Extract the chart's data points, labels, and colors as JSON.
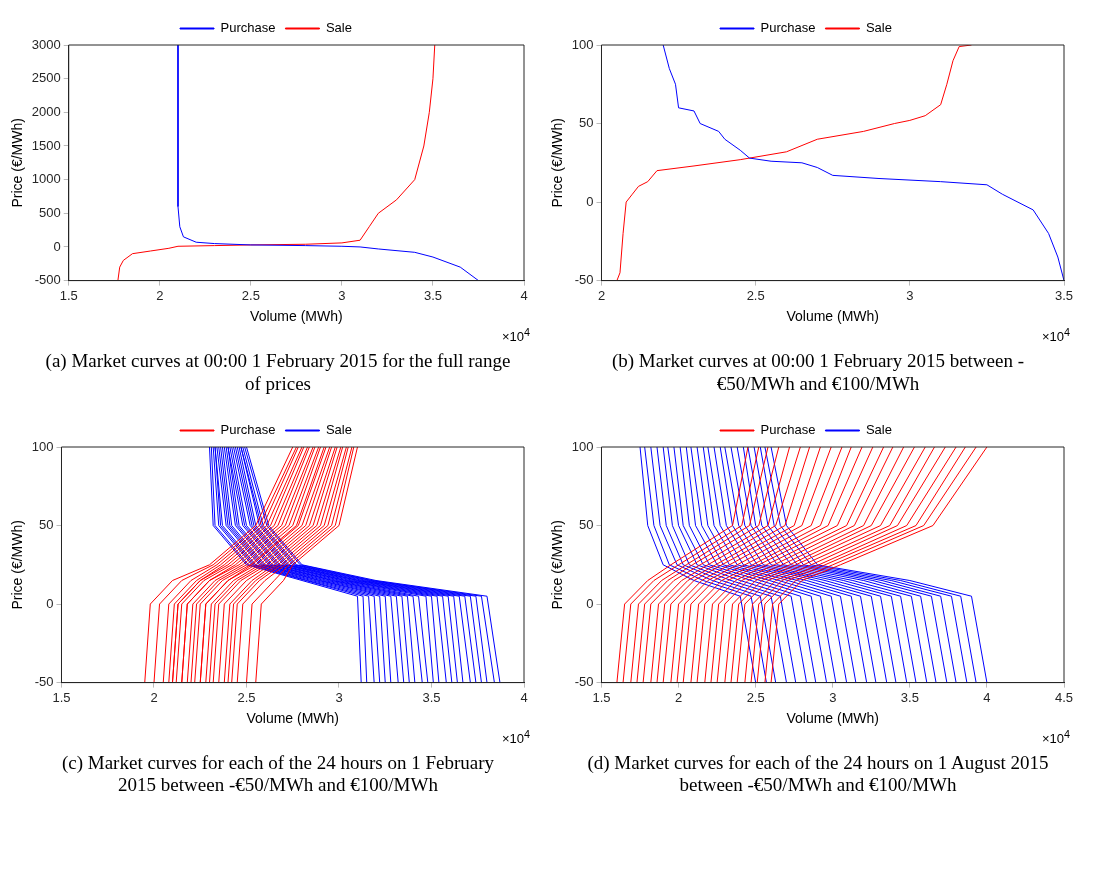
{
  "chart_data": [
    {
      "type": "line",
      "title": "(a) Market curves at 00:00 1 February 2015 for the full range of prices",
      "xlabel": "Volume (MWh)",
      "ylabel": "Price (€/MWh)",
      "annotations": [
        "×10$^{4}$"
      ],
      "xlim": [
        1.5,
        4
      ],
      "xticks": [
        1.5,
        2,
        2.5,
        3,
        3.5,
        4
      ],
      "ylim": [
        -500,
        3000
      ],
      "yticks": [
        -500,
        0,
        500,
        1000,
        1500,
        2000,
        2500,
        3000
      ],
      "legend": "top",
      "series": [
        {
          "name": "Purchase",
          "color": "#0000ff",
          "x": [
            2.1,
            2.1,
            2.11,
            2.13,
            2.2,
            2.3,
            2.5,
            2.8,
            3.0,
            3.1,
            3.2,
            3.4,
            3.5,
            3.65,
            3.75
          ],
          "values": [
            3000,
            600,
            300,
            150,
            70,
            50,
            30,
            20,
            10,
            0,
            -30,
            -80,
            -150,
            -300,
            -500
          ]
        },
        {
          "name": "Sale",
          "color": "#ff0000",
          "x": [
            1.77,
            1.78,
            1.8,
            1.85,
            1.95,
            2.05,
            2.1,
            2.3,
            2.5,
            2.8,
            3.0,
            3.1,
            3.15,
            3.2,
            3.3,
            3.4,
            3.45,
            3.48,
            3.5,
            3.51
          ],
          "values": [
            -500,
            -300,
            -200,
            -100,
            -60,
            -20,
            10,
            20,
            30,
            40,
            60,
            100,
            300,
            500,
            700,
            1000,
            1500,
            2000,
            2500,
            3000
          ]
        }
      ]
    },
    {
      "type": "line",
      "title": "(b) Market curves at 00:00 1 February 2015 between -€50/MWh and €100/MWh",
      "xlabel": "Volume (MWh)",
      "ylabel": "Price (€/MWh)",
      "annotations": [
        "×10$^{4}$"
      ],
      "xlim": [
        2,
        3.5
      ],
      "xticks": [
        2,
        2.5,
        3,
        3.5
      ],
      "ylim": [
        -50,
        100
      ],
      "yticks": [
        -50,
        0,
        50,
        100
      ],
      "legend": "top",
      "series": [
        {
          "name": "Purchase",
          "color": "#0000ff",
          "x": [
            2.2,
            2.22,
            2.24,
            2.25,
            2.3,
            2.32,
            2.38,
            2.4,
            2.45,
            2.48,
            2.55,
            2.65,
            2.7,
            2.75,
            2.9,
            3.1,
            3.25,
            3.3,
            3.4,
            3.45,
            3.48,
            3.5
          ],
          "values": [
            100,
            85,
            75,
            60,
            58,
            50,
            45,
            40,
            33,
            28,
            26,
            25,
            22,
            17,
            15,
            13,
            11,
            5,
            -5,
            -20,
            -35,
            -50
          ]
        },
        {
          "name": "Sale",
          "color": "#ff0000",
          "x": [
            2.05,
            2.06,
            2.07,
            2.08,
            2.1,
            2.12,
            2.15,
            2.18,
            2.3,
            2.45,
            2.6,
            2.7,
            2.85,
            2.95,
            3.0,
            3.05,
            3.1,
            3.12,
            3.14,
            3.16,
            3.2
          ],
          "values": [
            -50,
            -45,
            -20,
            0,
            5,
            10,
            13,
            20,
            23,
            27,
            32,
            40,
            45,
            50,
            52,
            55,
            62,
            75,
            90,
            99,
            100
          ]
        }
      ]
    },
    {
      "type": "line",
      "title": "(c) Market curves for each of the 24 hours on 1 February 2015 between -€50/MWh and €100/MWh",
      "xlabel": "Volume (MWh)",
      "ylabel": "Price (€/MWh)",
      "annotations": [
        "×10$^{4}$"
      ],
      "xlim": [
        1.5,
        4
      ],
      "xticks": [
        1.5,
        2,
        2.5,
        3,
        3.5,
        4
      ],
      "ylim": [
        -50,
        100
      ],
      "yticks": [
        -50,
        0,
        50,
        100
      ],
      "legend": "top",
      "series": [
        {
          "name": "Purchase",
          "color": "#ff0000",
          "x": [
            1.95,
            1.98,
            2.1,
            2.3,
            2.55,
            2.75
          ],
          "values": [
            -50,
            0,
            15,
            25,
            50,
            100
          ]
        },
        {
          "color": "#ff0000",
          "x": [
            2.0,
            2.03,
            2.15,
            2.32,
            2.57,
            2.77
          ],
          "values": [
            -50,
            0,
            15,
            25,
            50,
            100
          ]
        },
        {
          "color": "#ff0000",
          "x": [
            2.05,
            2.08,
            2.2,
            2.34,
            2.59,
            2.78
          ],
          "values": [
            -50,
            0,
            15,
            25,
            50,
            100
          ]
        },
        {
          "color": "#ff0000",
          "x": [
            2.08,
            2.11,
            2.23,
            2.36,
            2.61,
            2.8
          ],
          "values": [
            -50,
            0,
            15,
            25,
            50,
            100
          ]
        },
        {
          "color": "#ff0000",
          "x": [
            2.1,
            2.13,
            2.25,
            2.38,
            2.63,
            2.81
          ],
          "values": [
            -50,
            0,
            15,
            25,
            50,
            100
          ]
        },
        {
          "color": "#ff0000",
          "x": [
            2.1,
            2.13,
            2.25,
            2.4,
            2.65,
            2.83
          ],
          "values": [
            -50,
            0,
            15,
            25,
            50,
            100
          ]
        },
        {
          "color": "#ff0000",
          "x": [
            2.12,
            2.15,
            2.27,
            2.42,
            2.67,
            2.84
          ],
          "values": [
            -50,
            0,
            15,
            25,
            50,
            100
          ]
        },
        {
          "color": "#ff0000",
          "x": [
            2.15,
            2.18,
            2.3,
            2.44,
            2.69,
            2.86
          ],
          "values": [
            -50,
            0,
            15,
            25,
            50,
            100
          ]
        },
        {
          "color": "#ff0000",
          "x": [
            2.15,
            2.18,
            2.3,
            2.46,
            2.71,
            2.87
          ],
          "values": [
            -50,
            0,
            15,
            25,
            50,
            100
          ]
        },
        {
          "color": "#ff0000",
          "x": [
            2.18,
            2.21,
            2.33,
            2.48,
            2.73,
            2.89
          ],
          "values": [
            -50,
            0,
            15,
            25,
            50,
            100
          ]
        },
        {
          "color": "#ff0000",
          "x": [
            2.2,
            2.23,
            2.35,
            2.5,
            2.75,
            2.9
          ],
          "values": [
            -50,
            0,
            15,
            25,
            50,
            100
          ]
        },
        {
          "color": "#ff0000",
          "x": [
            2.22,
            2.25,
            2.37,
            2.52,
            2.77,
            2.92
          ],
          "values": [
            -50,
            0,
            15,
            25,
            50,
            100
          ]
        },
        {
          "color": "#ff0000",
          "x": [
            2.25,
            2.28,
            2.4,
            2.53,
            2.78,
            2.93
          ],
          "values": [
            -50,
            0,
            15,
            25,
            50,
            100
          ]
        },
        {
          "color": "#ff0000",
          "x": [
            2.25,
            2.28,
            2.4,
            2.55,
            2.8,
            2.95
          ],
          "values": [
            -50,
            0,
            15,
            25,
            50,
            100
          ]
        },
        {
          "color": "#ff0000",
          "x": [
            2.28,
            2.31,
            2.43,
            2.57,
            2.82,
            2.96
          ],
          "values": [
            -50,
            0,
            15,
            25,
            50,
            100
          ]
        },
        {
          "color": "#ff0000",
          "x": [
            2.3,
            2.33,
            2.45,
            2.59,
            2.84,
            2.98
          ],
          "values": [
            -50,
            0,
            15,
            25,
            50,
            100
          ]
        },
        {
          "color": "#ff0000",
          "x": [
            2.32,
            2.35,
            2.47,
            2.61,
            2.86,
            2.99
          ],
          "values": [
            -50,
            0,
            15,
            25,
            50,
            100
          ]
        },
        {
          "color": "#ff0000",
          "x": [
            2.35,
            2.38,
            2.5,
            2.63,
            2.88,
            3.01
          ],
          "values": [
            -50,
            0,
            15,
            25,
            50,
            100
          ]
        },
        {
          "color": "#ff0000",
          "x": [
            2.38,
            2.41,
            2.53,
            2.65,
            2.9,
            3.02
          ],
          "values": [
            -50,
            0,
            15,
            25,
            50,
            100
          ]
        },
        {
          "color": "#ff0000",
          "x": [
            2.4,
            2.43,
            2.55,
            2.67,
            2.92,
            3.04
          ],
          "values": [
            -50,
            0,
            15,
            25,
            50,
            100
          ]
        },
        {
          "color": "#ff0000",
          "x": [
            2.42,
            2.45,
            2.57,
            2.69,
            2.94,
            3.05
          ],
          "values": [
            -50,
            0,
            15,
            25,
            50,
            100
          ]
        },
        {
          "color": "#ff0000",
          "x": [
            2.45,
            2.48,
            2.6,
            2.71,
            2.96,
            3.07
          ],
          "values": [
            -50,
            0,
            15,
            25,
            50,
            100
          ]
        },
        {
          "color": "#ff0000",
          "x": [
            2.5,
            2.53,
            2.65,
            2.73,
            2.98,
            3.08
          ],
          "values": [
            -50,
            0,
            15,
            25,
            50,
            100
          ]
        },
        {
          "color": "#ff0000",
          "x": [
            2.55,
            2.58,
            2.7,
            2.75,
            3.0,
            3.1
          ],
          "values": [
            -50,
            0,
            15,
            25,
            50,
            100
          ]
        },
        {
          "name": "Sale",
          "color": "#0000ff",
          "x": [
            2.3,
            2.32,
            2.5,
            2.8,
            3.1,
            3.12
          ],
          "values": [
            100,
            50,
            25,
            15,
            5,
            -50
          ]
        },
        {
          "color": "#0000ff",
          "x": [
            2.31,
            2.33,
            2.51,
            2.82,
            3.13,
            3.15
          ],
          "values": [
            100,
            50,
            25,
            15,
            5,
            -50
          ]
        },
        {
          "color": "#0000ff",
          "x": [
            2.32,
            2.35,
            2.53,
            2.83,
            3.16,
            3.19
          ],
          "values": [
            100,
            50,
            25,
            15,
            5,
            -50
          ]
        },
        {
          "color": "#0000ff",
          "x": [
            2.33,
            2.36,
            2.54,
            2.85,
            3.19,
            3.22
          ],
          "values": [
            100,
            50,
            25,
            15,
            5,
            -50
          ]
        },
        {
          "color": "#0000ff",
          "x": [
            2.33,
            2.37,
            2.55,
            2.87,
            3.22,
            3.25
          ],
          "values": [
            100,
            50,
            25,
            15,
            5,
            -50
          ]
        },
        {
          "color": "#0000ff",
          "x": [
            2.34,
            2.39,
            2.57,
            2.89,
            3.25,
            3.28
          ],
          "values": [
            100,
            50,
            25,
            15,
            5,
            -50
          ]
        },
        {
          "color": "#0000ff",
          "x": [
            2.35,
            2.4,
            2.58,
            2.9,
            3.28,
            3.32
          ],
          "values": [
            100,
            50,
            25,
            15,
            5,
            -50
          ]
        },
        {
          "color": "#0000ff",
          "x": [
            2.36,
            2.41,
            2.59,
            2.92,
            3.31,
            3.35
          ],
          "values": [
            100,
            50,
            25,
            15,
            5,
            -50
          ]
        },
        {
          "color": "#0000ff",
          "x": [
            2.37,
            2.42,
            2.6,
            2.94,
            3.34,
            3.38
          ],
          "values": [
            100,
            50,
            25,
            15,
            5,
            -50
          ]
        },
        {
          "color": "#0000ff",
          "x": [
            2.38,
            2.44,
            2.62,
            2.96,
            3.37,
            3.41
          ],
          "values": [
            100,
            50,
            25,
            15,
            5,
            -50
          ]
        },
        {
          "color": "#0000ff",
          "x": [
            2.39,
            2.45,
            2.63,
            2.97,
            3.4,
            3.45
          ],
          "values": [
            100,
            50,
            25,
            15,
            5,
            -50
          ]
        },
        {
          "color": "#0000ff",
          "x": [
            2.4,
            2.46,
            2.64,
            2.99,
            3.43,
            3.48
          ],
          "values": [
            100,
            50,
            25,
            15,
            5,
            -50
          ]
        },
        {
          "color": "#0000ff",
          "x": [
            2.4,
            2.48,
            2.66,
            3.01,
            3.47,
            3.51
          ],
          "values": [
            100,
            50,
            25,
            15,
            5,
            -50
          ]
        },
        {
          "color": "#0000ff",
          "x": [
            2.41,
            2.49,
            2.67,
            3.03,
            3.5,
            3.54
          ],
          "values": [
            100,
            50,
            25,
            15,
            5,
            -50
          ]
        },
        {
          "color": "#0000ff",
          "x": [
            2.42,
            2.5,
            2.68,
            3.04,
            3.53,
            3.58
          ],
          "values": [
            100,
            50,
            25,
            15,
            5,
            -50
          ]
        },
        {
          "color": "#0000ff",
          "x": [
            2.43,
            2.52,
            2.7,
            3.06,
            3.56,
            3.61
          ],
          "values": [
            100,
            50,
            25,
            15,
            5,
            -50
          ]
        },
        {
          "color": "#0000ff",
          "x": [
            2.44,
            2.53,
            2.71,
            3.08,
            3.59,
            3.64
          ],
          "values": [
            100,
            50,
            25,
            15,
            5,
            -50
          ]
        },
        {
          "color": "#0000ff",
          "x": [
            2.45,
            2.54,
            2.72,
            3.1,
            3.62,
            3.67
          ],
          "values": [
            100,
            50,
            25,
            15,
            5,
            -50
          ]
        },
        {
          "color": "#0000ff",
          "x": [
            2.46,
            2.55,
            2.73,
            3.11,
            3.65,
            3.71
          ],
          "values": [
            100,
            50,
            25,
            15,
            5,
            -50
          ]
        },
        {
          "color": "#0000ff",
          "x": [
            2.47,
            2.57,
            2.75,
            3.13,
            3.68,
            3.74
          ],
          "values": [
            100,
            50,
            25,
            15,
            5,
            -50
          ]
        },
        {
          "color": "#0000ff",
          "x": [
            2.47,
            2.58,
            2.76,
            3.15,
            3.71,
            3.77
          ],
          "values": [
            100,
            50,
            25,
            15,
            5,
            -50
          ]
        },
        {
          "color": "#0000ff",
          "x": [
            2.48,
            2.59,
            2.77,
            3.17,
            3.74,
            3.8
          ],
          "values": [
            100,
            50,
            25,
            15,
            5,
            -50
          ]
        },
        {
          "color": "#0000ff",
          "x": [
            2.49,
            2.61,
            2.79,
            3.18,
            3.77,
            3.84
          ],
          "values": [
            100,
            50,
            25,
            15,
            5,
            -50
          ]
        },
        {
          "color": "#0000ff",
          "x": [
            2.5,
            2.62,
            2.8,
            3.2,
            3.8,
            3.87
          ],
          "values": [
            100,
            50,
            25,
            15,
            5,
            -50
          ]
        }
      ]
    },
    {
      "type": "line",
      "title": "(d) Market curves for each of the 24 hours on 1 August 2015 between -€50/MWh and €100/MWh",
      "xlabel": "Volume (MWh)",
      "ylabel": "Price (€/MWh)",
      "annotations": [
        "×10$^{4}$"
      ],
      "xlim": [
        1.5,
        4.5
      ],
      "xticks": [
        1.5,
        2,
        2.5,
        3,
        3.5,
        4,
        4.5
      ],
      "ylim": [
        -50,
        100
      ],
      "yticks": [
        -50,
        0,
        50,
        100
      ],
      "legend": "top",
      "series": [
        {
          "name": "Purchase",
          "color": "#ff0000",
          "x": [
            1.6,
            1.65,
            1.8,
            1.95,
            2.35,
            2.45
          ],
          "values": [
            -50,
            0,
            15,
            25,
            50,
            100
          ]
        },
        {
          "color": "#ff0000",
          "x": [
            1.64,
            1.69,
            1.84,
            2.0,
            2.41,
            2.52
          ],
          "values": [
            -50,
            0,
            15,
            25,
            50,
            100
          ]
        },
        {
          "color": "#ff0000",
          "x": [
            1.69,
            1.74,
            1.89,
            2.05,
            2.46,
            2.58
          ],
          "values": [
            -50,
            0,
            15,
            25,
            50,
            100
          ]
        },
        {
          "color": "#ff0000",
          "x": [
            1.73,
            1.78,
            1.93,
            2.09,
            2.52,
            2.65
          ],
          "values": [
            -50,
            0,
            15,
            25,
            50,
            100
          ]
        },
        {
          "color": "#ff0000",
          "x": [
            1.77,
            1.82,
            1.97,
            2.14,
            2.58,
            2.72
          ],
          "values": [
            -50,
            0,
            15,
            25,
            50,
            100
          ]
        },
        {
          "color": "#ff0000",
          "x": [
            1.82,
            1.87,
            2.02,
            2.19,
            2.63,
            2.79
          ],
          "values": [
            -50,
            0,
            15,
            25,
            50,
            100
          ]
        },
        {
          "color": "#ff0000",
          "x": [
            1.86,
            1.91,
            2.06,
            2.24,
            2.69,
            2.85
          ],
          "values": [
            -50,
            0,
            15,
            25,
            50,
            100
          ]
        },
        {
          "color": "#ff0000",
          "x": [
            1.9,
            1.95,
            2.1,
            2.28,
            2.75,
            2.92
          ],
          "values": [
            -50,
            0,
            15,
            25,
            50,
            100
          ]
        },
        {
          "color": "#ff0000",
          "x": [
            1.95,
            2.0,
            2.15,
            2.33,
            2.8,
            2.99
          ],
          "values": [
            -50,
            0,
            15,
            25,
            50,
            100
          ]
        },
        {
          "color": "#ff0000",
          "x": [
            1.99,
            2.04,
            2.19,
            2.38,
            2.86,
            3.06
          ],
          "values": [
            -50,
            0,
            15,
            25,
            50,
            100
          ]
        },
        {
          "color": "#ff0000",
          "x": [
            2.03,
            2.08,
            2.23,
            2.43,
            2.92,
            3.12
          ],
          "values": [
            -50,
            0,
            15,
            25,
            50,
            100
          ]
        },
        {
          "color": "#ff0000",
          "x": [
            2.08,
            2.13,
            2.28,
            2.48,
            2.97,
            3.19
          ],
          "values": [
            -50,
            0,
            15,
            25,
            50,
            100
          ]
        },
        {
          "color": "#ff0000",
          "x": [
            2.12,
            2.17,
            2.32,
            2.52,
            3.03,
            3.26
          ],
          "values": [
            -50,
            0,
            15,
            25,
            50,
            100
          ]
        },
        {
          "color": "#ff0000",
          "x": [
            2.17,
            2.22,
            2.37,
            2.57,
            3.09,
            3.33
          ],
          "values": [
            -50,
            0,
            15,
            25,
            50,
            100
          ]
        },
        {
          "color": "#ff0000",
          "x": [
            2.21,
            2.26,
            2.41,
            2.62,
            3.14,
            3.39
          ],
          "values": [
            -50,
            0,
            15,
            25,
            50,
            100
          ]
        },
        {
          "color": "#ff0000",
          "x": [
            2.25,
            2.3,
            2.45,
            2.67,
            3.2,
            3.46
          ],
          "values": [
            -50,
            0,
            15,
            25,
            50,
            100
          ]
        },
        {
          "color": "#ff0000",
          "x": [
            2.3,
            2.35,
            2.5,
            2.72,
            3.25,
            3.53
          ],
          "values": [
            -50,
            0,
            15,
            25,
            50,
            100
          ]
        },
        {
          "color": "#ff0000",
          "x": [
            2.34,
            2.39,
            2.54,
            2.76,
            3.31,
            3.6
          ],
          "values": [
            -50,
            0,
            15,
            25,
            50,
            100
          ]
        },
        {
          "color": "#ff0000",
          "x": [
            2.38,
            2.43,
            2.58,
            2.81,
            3.37,
            3.66
          ],
          "values": [
            -50,
            0,
            15,
            25,
            50,
            100
          ]
        },
        {
          "color": "#ff0000",
          "x": [
            2.43,
            2.48,
            2.63,
            2.86,
            3.42,
            3.73
          ],
          "values": [
            -50,
            0,
            15,
            25,
            50,
            100
          ]
        },
        {
          "color": "#ff0000",
          "x": [
            2.47,
            2.52,
            2.67,
            2.91,
            3.48,
            3.8
          ],
          "values": [
            -50,
            0,
            15,
            25,
            50,
            100
          ]
        },
        {
          "color": "#ff0000",
          "x": [
            2.51,
            2.56,
            2.71,
            2.95,
            3.54,
            3.86
          ],
          "values": [
            -50,
            0,
            15,
            25,
            50,
            100
          ]
        },
        {
          "color": "#ff0000",
          "x": [
            2.56,
            2.61,
            2.76,
            3.0,
            3.59,
            3.93
          ],
          "values": [
            -50,
            0,
            15,
            25,
            50,
            100
          ]
        },
        {
          "color": "#ff0000",
          "x": [
            2.6,
            2.65,
            2.8,
            3.05,
            3.65,
            4.0
          ],
          "values": [
            -50,
            0,
            15,
            25,
            50,
            100
          ]
        },
        {
          "name": "Sale",
          "color": "#0000ff",
          "x": [
            1.75,
            1.8,
            1.9,
            2.1,
            2.4,
            2.5
          ],
          "values": [
            100,
            50,
            25,
            15,
            5,
            -50
          ]
        },
        {
          "color": "#0000ff",
          "x": [
            1.78,
            1.84,
            1.94,
            2.16,
            2.47,
            2.57
          ],
          "values": [
            100,
            50,
            25,
            15,
            5,
            -50
          ]
        },
        {
          "color": "#0000ff",
          "x": [
            1.82,
            1.88,
            1.99,
            2.22,
            2.53,
            2.63
          ],
          "values": [
            100,
            50,
            25,
            15,
            5,
            -50
          ]
        },
        {
          "color": "#0000ff",
          "x": [
            1.86,
            1.92,
            2.03,
            2.28,
            2.6,
            2.7
          ],
          "values": [
            100,
            50,
            25,
            15,
            5,
            -50
          ]
        },
        {
          "color": "#0000ff",
          "x": [
            1.9,
            1.96,
            2.07,
            2.34,
            2.66,
            2.76
          ],
          "values": [
            100,
            50,
            25,
            15,
            5,
            -50
          ]
        },
        {
          "color": "#0000ff",
          "x": [
            1.93,
            2.0,
            2.12,
            2.4,
            2.73,
            2.83
          ],
          "values": [
            100,
            50,
            25,
            15,
            5,
            -50
          ]
        },
        {
          "color": "#0000ff",
          "x": [
            1.97,
            2.03,
            2.16,
            2.47,
            2.79,
            2.89
          ],
          "values": [
            100,
            50,
            25,
            15,
            5,
            -50
          ]
        },
        {
          "color": "#0000ff",
          "x": [
            2.01,
            2.07,
            2.2,
            2.53,
            2.86,
            2.96
          ],
          "values": [
            100,
            50,
            25,
            15,
            5,
            -50
          ]
        },
        {
          "color": "#0000ff",
          "x": [
            2.05,
            2.11,
            2.25,
            2.59,
            2.92,
            3.02
          ],
          "values": [
            100,
            50,
            25,
            15,
            5,
            -50
          ]
        },
        {
          "color": "#0000ff",
          "x": [
            2.08,
            2.15,
            2.29,
            2.65,
            2.99,
            3.09
          ],
          "values": [
            100,
            50,
            25,
            15,
            5,
            -50
          ]
        },
        {
          "color": "#0000ff",
          "x": [
            2.12,
            2.19,
            2.33,
            2.71,
            3.05,
            3.15
          ],
          "values": [
            100,
            50,
            25,
            15,
            5,
            -50
          ]
        },
        {
          "color": "#0000ff",
          "x": [
            2.16,
            2.23,
            2.38,
            2.77,
            3.12,
            3.22
          ],
          "values": [
            100,
            50,
            25,
            15,
            5,
            -50
          ]
        },
        {
          "color": "#0000ff",
          "x": [
            2.19,
            2.27,
            2.42,
            2.83,
            3.18,
            3.28
          ],
          "values": [
            100,
            50,
            25,
            15,
            5,
            -50
          ]
        },
        {
          "color": "#0000ff",
          "x": [
            2.23,
            2.31,
            2.47,
            2.89,
            3.25,
            3.35
          ],
          "values": [
            100,
            50,
            25,
            15,
            5,
            -50
          ]
        },
        {
          "color": "#0000ff",
          "x": [
            2.27,
            2.35,
            2.51,
            2.95,
            3.31,
            3.41
          ],
          "values": [
            100,
            50,
            25,
            15,
            5,
            -50
          ]
        },
        {
          "color": "#0000ff",
          "x": [
            2.3,
            2.39,
            2.55,
            3.01,
            3.38,
            3.48
          ],
          "values": [
            100,
            50,
            25,
            15,
            5,
            -50
          ]
        },
        {
          "color": "#0000ff",
          "x": [
            2.34,
            2.43,
            2.6,
            3.07,
            3.44,
            3.54
          ],
          "values": [
            100,
            50,
            25,
            15,
            5,
            -50
          ]
        },
        {
          "color": "#0000ff",
          "x": [
            2.38,
            2.47,
            2.64,
            3.13,
            3.51,
            3.61
          ],
          "values": [
            100,
            50,
            25,
            15,
            5,
            -50
          ]
        },
        {
          "color": "#0000ff",
          "x": [
            2.42,
            2.5,
            2.68,
            3.2,
            3.57,
            3.67
          ],
          "values": [
            100,
            50,
            25,
            15,
            5,
            -50
          ]
        },
        {
          "color": "#0000ff",
          "x": [
            2.45,
            2.54,
            2.73,
            3.26,
            3.64,
            3.74
          ],
          "values": [
            100,
            50,
            25,
            15,
            5,
            -50
          ]
        },
        {
          "color": "#0000ff",
          "x": [
            2.49,
            2.58,
            2.77,
            3.32,
            3.7,
            3.8
          ],
          "values": [
            100,
            50,
            25,
            15,
            5,
            -50
          ]
        },
        {
          "color": "#0000ff",
          "x": [
            2.53,
            2.62,
            2.81,
            3.38,
            3.77,
            3.87
          ],
          "values": [
            100,
            50,
            25,
            15,
            5,
            -50
          ]
        },
        {
          "color": "#0000ff",
          "x": [
            2.56,
            2.66,
            2.86,
            3.44,
            3.83,
            3.93
          ],
          "values": [
            100,
            50,
            25,
            15,
            5,
            -50
          ]
        },
        {
          "color": "#0000ff",
          "x": [
            2.6,
            2.7,
            2.9,
            3.5,
            3.9,
            4.0
          ],
          "values": [
            100,
            50,
            25,
            15,
            5,
            -50
          ]
        }
      ]
    }
  ]
}
